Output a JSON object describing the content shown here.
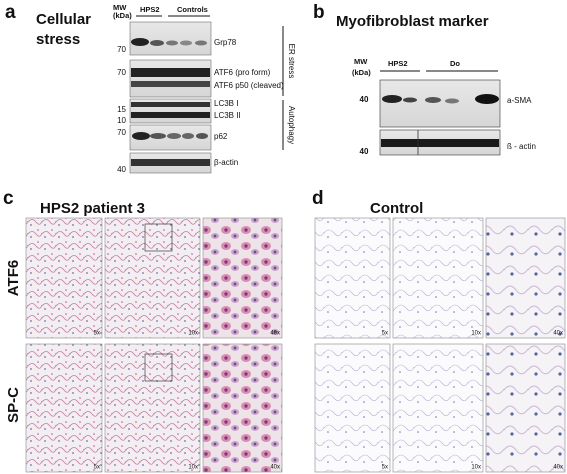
{
  "panel_a": {
    "letter": "a",
    "title_lines": [
      "Cellular",
      "stress"
    ],
    "mw_header_lines": [
      "MW",
      "(kDa)"
    ],
    "lanes": [
      "HPS2",
      "Controls"
    ],
    "mw_markers": [
      70,
      70,
      15,
      10,
      70,
      40
    ],
    "bands": [
      "Grp78",
      "ATF6 (pro form)",
      "ATF6 p50 (cleaved)",
      "LC3B I",
      "LC3B II",
      "p62",
      "β-actin"
    ],
    "groups": [
      "ER stress",
      "Autophagy"
    ]
  },
  "panel_b": {
    "letter": "b",
    "title": "Myofibroblast marker",
    "mw_header_lines": [
      "MW",
      "(kDa)"
    ],
    "lanes": [
      "HPS2",
      "Do"
    ],
    "mw_markers": [
      40,
      40
    ],
    "bands": [
      "a-SMA",
      "ß - actin"
    ]
  },
  "panel_c": {
    "letter": "c",
    "title": "HPS2 patient 3",
    "rows": [
      "ATF6",
      "SP-C"
    ],
    "magnifications": [
      [
        "5x",
        "10x",
        "40x"
      ],
      [
        "5x",
        "10x",
        "40x"
      ]
    ]
  },
  "panel_d": {
    "letter": "d",
    "title": "Control",
    "magnifications": [
      [
        "5x",
        "10x",
        "40x"
      ],
      [
        "5x",
        "10x",
        "40x"
      ]
    ]
  }
}
